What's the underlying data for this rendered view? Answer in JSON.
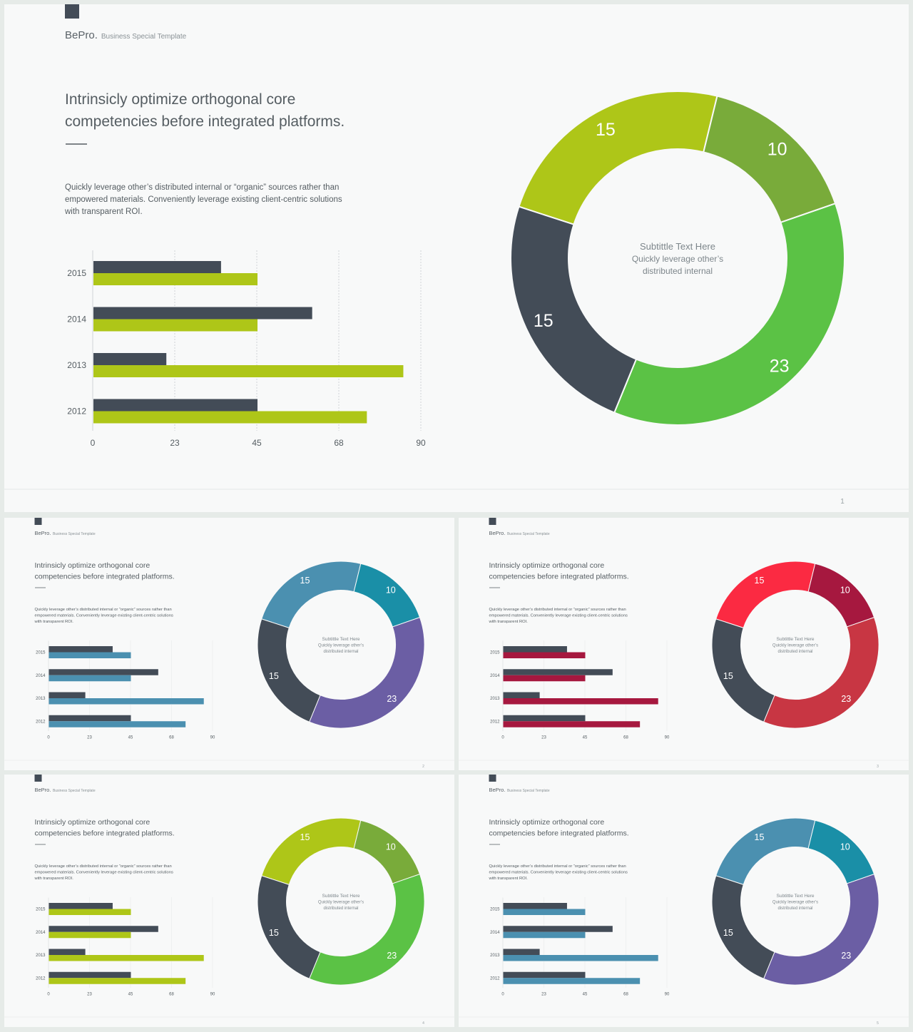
{
  "brand": {
    "name": "BePro.",
    "tagline": "Business  Special  Template"
  },
  "headline_line1": "Intrinsicly optimize orthogonal core",
  "headline_line2": "competencies before integrated platforms.",
  "body_lines": [
    "Quickly  leverage  other’s  distributed  internal  or  “organic”  sources  rather  than",
    "empowered  materials.  Conveniently  leverage  existing  client-centric  solutions",
    "with  transparent  ROI."
  ],
  "donut_center": {
    "subtitle": "Subtittle Text Here",
    "line1": "Quickly  leverage  other’s",
    "line2": "distributed  internal"
  },
  "slides": [
    {
      "page": "1",
      "theme": {
        "bar_a": "#434c57",
        "bar_b": "#aec618",
        "donut": [
          "#aec618",
          "#79ab3a",
          "#5bc245",
          "#434c57"
        ]
      }
    },
    {
      "page": "2",
      "theme": {
        "bar_a": "#434c57",
        "bar_b": "#4b90b0",
        "donut": [
          "#4b90b0",
          "#1a8fa7",
          "#6b5ea4",
          "#434c57"
        ]
      }
    },
    {
      "page": "3",
      "theme": {
        "bar_a": "#434c57",
        "bar_b": "#a6183f",
        "donut": [
          "#fb2a42",
          "#a6183f",
          "#c83643",
          "#434c57"
        ]
      }
    },
    {
      "page": "4",
      "theme": {
        "bar_a": "#434c57",
        "bar_b": "#aec618",
        "donut": [
          "#aec618",
          "#79ab3a",
          "#5bc245",
          "#434c57"
        ]
      }
    },
    {
      "page": "5",
      "theme": {
        "bar_a": "#434c57",
        "bar_b": "#4b90b0",
        "donut": [
          "#4b90b0",
          "#1a8fa7",
          "#6b5ea4",
          "#434c57"
        ]
      }
    }
  ],
  "chart_data": [
    {
      "type": "bar",
      "orientation": "horizontal",
      "categories": [
        "2015",
        "2014",
        "2013",
        "2012"
      ],
      "series": [
        {
          "values": [
            35,
            60,
            20,
            45
          ]
        },
        {
          "values": [
            45,
            45,
            85,
            75
          ]
        }
      ],
      "xticks": [
        "0",
        "23",
        "45",
        "68",
        "90"
      ],
      "xlim": [
        0,
        90
      ],
      "grid": "vertical dashed"
    },
    {
      "type": "pie",
      "variant": "donut",
      "labels": [
        "15",
        "10",
        "23",
        "15"
      ],
      "values": [
        15,
        10,
        23,
        15
      ]
    }
  ]
}
